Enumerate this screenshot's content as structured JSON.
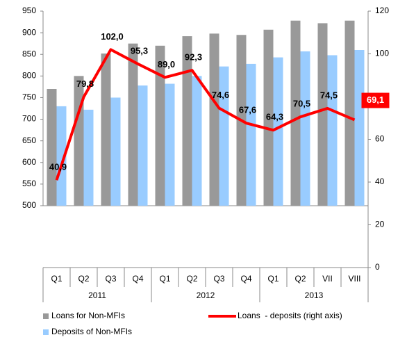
{
  "chart_data": {
    "type": "bar_line",
    "categories": [
      "Q1",
      "Q2",
      "Q3",
      "Q4",
      "Q1",
      "Q2",
      "Q3",
      "Q4",
      "Q1",
      "Q2",
      "VII",
      "VIII"
    ],
    "groups": [
      {
        "label": "2011",
        "count": 4
      },
      {
        "label": "2012",
        "count": 4
      },
      {
        "label": "2013",
        "count": 4
      }
    ],
    "series": [
      {
        "name": "Loans for Non-MFIs",
        "color": "#999999",
        "type": "bar",
        "values": [
          770,
          800,
          852,
          875,
          870,
          892,
          898,
          895,
          907,
          928,
          922,
          928
        ]
      },
      {
        "name": "Deposits of Non-MFIs",
        "color": "#99ccff",
        "type": "bar",
        "values": [
          730,
          722,
          750,
          778,
          782,
          800,
          822,
          828,
          843,
          857,
          848,
          860
        ]
      },
      {
        "name": "Loans  - deposits (right axis)",
        "color": "#ff0000",
        "type": "line",
        "axis": "y2",
        "values": [
          40.9,
          79.8,
          102.0,
          95.3,
          89.0,
          92.3,
          74.6,
          67.6,
          64.3,
          70.5,
          74.5,
          69.1
        ],
        "value_labels": [
          "40,9",
          "79,8",
          "102,0",
          "95,3",
          "89,0",
          "92,3",
          "74,6",
          "67,6",
          "64,3",
          "70,5",
          "74,5",
          "69,1"
        ]
      }
    ],
    "ylim": [
      500,
      950
    ],
    "yticks": [
      500,
      550,
      600,
      650,
      700,
      750,
      800,
      850,
      900,
      950
    ],
    "y2lim": [
      0,
      120
    ],
    "y2ticks": [
      0,
      20,
      40,
      60,
      80,
      100,
      120
    ],
    "legend": "bottom",
    "grid": false
  }
}
